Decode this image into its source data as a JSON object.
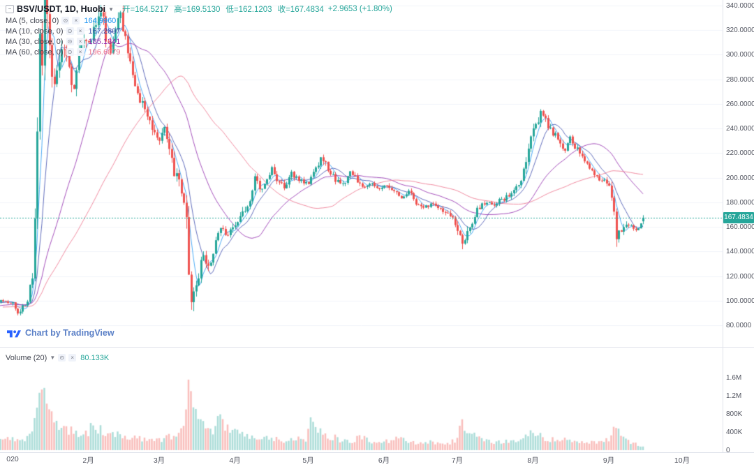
{
  "header": {
    "symbol_title": "BSV/USDT, 1D, Huobi",
    "ohlc": [
      "开=164.5217",
      "高=169.5130",
      "低=162.1203",
      "收=167.4834"
    ],
    "change": "+2.9653 (+1.80%)",
    "mas": [
      {
        "label": "MA (5, close, 0)",
        "value": "164.9960",
        "color": "#2196f3"
      },
      {
        "label": "MA (10, close, 0)",
        "value": "167.2807",
        "color": "#3949ab"
      },
      {
        "label": "MA (30, close, 0)",
        "value": "185.1341",
        "color": "#8e24aa"
      },
      {
        "label": "MA (60, close, 0)",
        "value": "196.6079",
        "color": "#ec6e88"
      }
    ]
  },
  "attribution": {
    "text": "Chart by TradingView"
  },
  "volume_legend": {
    "label": "Volume (20)",
    "value": "80.133K"
  },
  "price_tag": "167.4834",
  "colors": {
    "up": "#26a69a",
    "down": "#ef5350",
    "up_volume": "rgba(38,166,154,0.38)",
    "down_volume": "rgba(239,83,80,0.38)",
    "grid": "#f0f3fa",
    "accent_blue": "#2962ff",
    "tag_bg": "#26a69a",
    "axis_text": "#50535e"
  },
  "chart_data": {
    "type": "candlestick",
    "title": "BSV/USDT, 1D, Huobi",
    "timeframe": "1D",
    "exchange": "Huobi",
    "last_price": 167.4834,
    "last_candle": {
      "open": 164.5217,
      "high": 169.513,
      "low": 162.1203,
      "close": 167.4834,
      "volume_k": 80.133
    },
    "ylim": [
      80,
      340
    ],
    "volume_ylim_k": [
      0,
      1600
    ],
    "ma_periods": [
      5,
      10,
      30,
      60
    ],
    "price_ticks": [
      {
        "label": "340.0000",
        "value": 340
      },
      {
        "label": "320.0000",
        "value": 320
      },
      {
        "label": "300.0000",
        "value": 300
      },
      {
        "label": "280.0000",
        "value": 280
      },
      {
        "label": "260.0000",
        "value": 260
      },
      {
        "label": "240.0000",
        "value": 240
      },
      {
        "label": "220.0000",
        "value": 220
      },
      {
        "label": "200.0000",
        "value": 200
      },
      {
        "label": "180.0000",
        "value": 180
      },
      {
        "label": "160.0000",
        "value": 160
      },
      {
        "label": "140.0000",
        "value": 140
      },
      {
        "label": "120.0000",
        "value": 120
      },
      {
        "label": "100.0000",
        "value": 100
      },
      {
        "label": "80.0000",
        "value": 80
      }
    ],
    "volume_ticks": [
      {
        "label": "1.6M",
        "value": 1600
      },
      {
        "label": "1.2M",
        "value": 1200
      },
      {
        "label": "800K",
        "value": 800
      },
      {
        "label": "400K",
        "value": 400
      },
      {
        "label": "0",
        "value": 0
      }
    ],
    "time_ticks": [
      {
        "label": "020",
        "day": 0
      },
      {
        "label": "2月",
        "day": 31
      },
      {
        "label": "3月",
        "day": 60
      },
      {
        "label": "4月",
        "day": 91
      },
      {
        "label": "5月",
        "day": 121
      },
      {
        "label": "6月",
        "day": 152
      },
      {
        "label": "7月",
        "day": 182
      },
      {
        "label": "8月",
        "day": 213
      },
      {
        "label": "9月",
        "day": 244
      },
      {
        "label": "10月",
        "day": 274
      }
    ],
    "day_start": -63,
    "day_end": 258,
    "close_anchors": [
      [
        -63,
        95
      ],
      [
        -40,
        92
      ],
      [
        -20,
        96
      ],
      [
        -10,
        98
      ],
      [
        -3,
        100
      ],
      [
        0,
        97
      ],
      [
        2,
        90
      ],
      [
        4,
        95
      ],
      [
        6,
        100
      ],
      [
        8,
        120
      ],
      [
        9,
        160
      ],
      [
        10,
        230
      ],
      [
        11,
        310
      ],
      [
        12,
        290
      ],
      [
        13,
        360
      ],
      [
        14,
        330
      ],
      [
        15,
        300
      ],
      [
        17,
        270
      ],
      [
        19,
        290
      ],
      [
        21,
        310
      ],
      [
        23,
        290
      ],
      [
        25,
        270
      ],
      [
        27,
        300
      ],
      [
        29,
        315
      ],
      [
        31,
        305
      ],
      [
        34,
        330
      ],
      [
        36,
        340
      ],
      [
        38,
        315
      ],
      [
        40,
        300
      ],
      [
        42,
        320
      ],
      [
        44,
        335
      ],
      [
        46,
        310
      ],
      [
        48,
        290
      ],
      [
        51,
        270
      ],
      [
        54,
        255
      ],
      [
        57,
        240
      ],
      [
        60,
        228
      ],
      [
        62,
        238
      ],
      [
        64,
        222
      ],
      [
        66,
        205
      ],
      [
        68,
        195
      ],
      [
        70,
        185
      ],
      [
        71,
        170
      ],
      [
        72,
        115
      ],
      [
        73,
        92
      ],
      [
        74,
        108
      ],
      [
        76,
        122
      ],
      [
        78,
        138
      ],
      [
        80,
        128
      ],
      [
        82,
        142
      ],
      [
        85,
        158
      ],
      [
        88,
        152
      ],
      [
        91,
        162
      ],
      [
        94,
        172
      ],
      [
        97,
        180
      ],
      [
        99,
        200
      ],
      [
        101,
        190
      ],
      [
        103,
        196
      ],
      [
        106,
        208
      ],
      [
        108,
        198
      ],
      [
        111,
        193
      ],
      [
        114,
        204
      ],
      [
        117,
        198
      ],
      [
        120,
        194
      ],
      [
        123,
        202
      ],
      [
        125,
        212
      ],
      [
        127,
        216
      ],
      [
        129,
        206
      ],
      [
        132,
        198
      ],
      [
        135,
        194
      ],
      [
        138,
        204
      ],
      [
        141,
        198
      ],
      [
        144,
        192
      ],
      [
        147,
        196
      ],
      [
        150,
        190
      ],
      [
        153,
        194
      ],
      [
        156,
        188
      ],
      [
        159,
        184
      ],
      [
        162,
        190
      ],
      [
        165,
        179
      ],
      [
        168,
        174
      ],
      [
        171,
        180
      ],
      [
        174,
        177
      ],
      [
        177,
        171
      ],
      [
        180,
        166
      ],
      [
        182,
        158
      ],
      [
        184,
        148
      ],
      [
        186,
        154
      ],
      [
        188,
        162
      ],
      [
        190,
        174
      ],
      [
        193,
        180
      ],
      [
        196,
        177
      ],
      [
        199,
        181
      ],
      [
        202,
        184
      ],
      [
        205,
        189
      ],
      [
        208,
        196
      ],
      [
        210,
        215
      ],
      [
        212,
        235
      ],
      [
        214,
        242
      ],
      [
        216,
        252
      ],
      [
        218,
        246
      ],
      [
        220,
        240
      ],
      [
        222,
        234
      ],
      [
        224,
        228
      ],
      [
        226,
        224
      ],
      [
        228,
        234
      ],
      [
        230,
        226
      ],
      [
        232,
        219
      ],
      [
        234,
        214
      ],
      [
        236,
        209
      ],
      [
        238,
        204
      ],
      [
        240,
        199
      ],
      [
        242,
        197
      ],
      [
        244,
        192
      ],
      [
        245,
        186
      ],
      [
        246,
        172
      ],
      [
        247,
        152
      ],
      [
        249,
        158
      ],
      [
        251,
        164
      ],
      [
        253,
        160
      ],
      [
        255,
        157
      ],
      [
        257,
        162
      ],
      [
        258,
        167.48
      ]
    ],
    "volatility_anchors": [
      [
        -63,
        4
      ],
      [
        -10,
        5
      ],
      [
        0,
        6
      ],
      [
        6,
        6
      ],
      [
        8,
        15
      ],
      [
        10,
        35
      ],
      [
        13,
        45
      ],
      [
        16,
        30
      ],
      [
        20,
        22
      ],
      [
        25,
        20
      ],
      [
        30,
        20
      ],
      [
        36,
        22
      ],
      [
        40,
        18
      ],
      [
        45,
        18
      ],
      [
        50,
        15
      ],
      [
        55,
        14
      ],
      [
        60,
        13
      ],
      [
        65,
        14
      ],
      [
        70,
        20
      ],
      [
        72,
        35
      ],
      [
        74,
        25
      ],
      [
        78,
        15
      ],
      [
        82,
        13
      ],
      [
        86,
        11
      ],
      [
        92,
        9
      ],
      [
        98,
        13
      ],
      [
        104,
        9
      ],
      [
        110,
        8
      ],
      [
        116,
        8
      ],
      [
        122,
        9
      ],
      [
        127,
        10
      ],
      [
        133,
        7
      ],
      [
        140,
        7
      ],
      [
        147,
        6
      ],
      [
        154,
        6
      ],
      [
        160,
        6
      ],
      [
        166,
        7
      ],
      [
        172,
        6
      ],
      [
        178,
        7
      ],
      [
        182,
        10
      ],
      [
        184,
        13
      ],
      [
        188,
        9
      ],
      [
        193,
        7
      ],
      [
        200,
        6
      ],
      [
        205,
        7
      ],
      [
        209,
        11
      ],
      [
        212,
        14
      ],
      [
        216,
        12
      ],
      [
        220,
        10
      ],
      [
        226,
        9
      ],
      [
        232,
        8
      ],
      [
        238,
        7
      ],
      [
        243,
        7
      ],
      [
        245,
        10
      ],
      [
        247,
        18
      ],
      [
        250,
        9
      ],
      [
        254,
        6
      ],
      [
        258,
        5
      ]
    ],
    "volume_anchors_k": [
      [
        -63,
        150
      ],
      [
        -20,
        200
      ],
      [
        -3,
        250
      ],
      [
        0,
        300
      ],
      [
        3,
        200
      ],
      [
        6,
        300
      ],
      [
        8,
        500
      ],
      [
        10,
        900
      ],
      [
        12,
        1300
      ],
      [
        13,
        1550
      ],
      [
        14,
        1100
      ],
      [
        16,
        800
      ],
      [
        18,
        600
      ],
      [
        20,
        500
      ],
      [
        23,
        450
      ],
      [
        26,
        400
      ],
      [
        29,
        350
      ],
      [
        33,
        500
      ],
      [
        36,
        450
      ],
      [
        40,
        300
      ],
      [
        44,
        350
      ],
      [
        48,
        280
      ],
      [
        52,
        250
      ],
      [
        56,
        300
      ],
      [
        60,
        250
      ],
      [
        64,
        280
      ],
      [
        68,
        350
      ],
      [
        70,
        500
      ],
      [
        72,
        1400
      ],
      [
        73,
        1050
      ],
      [
        75,
        700
      ],
      [
        78,
        500
      ],
      [
        81,
        380
      ],
      [
        85,
        750
      ],
      [
        88,
        450
      ],
      [
        92,
        350
      ],
      [
        96,
        280
      ],
      [
        100,
        240
      ],
      [
        104,
        280
      ],
      [
        108,
        230
      ],
      [
        112,
        190
      ],
      [
        116,
        240
      ],
      [
        120,
        260
      ],
      [
        122,
        780
      ],
      [
        125,
        500
      ],
      [
        128,
        380
      ],
      [
        131,
        280
      ],
      [
        135,
        230
      ],
      [
        139,
        180
      ],
      [
        143,
        320
      ],
      [
        147,
        180
      ],
      [
        151,
        160
      ],
      [
        155,
        220
      ],
      [
        158,
        280
      ],
      [
        162,
        180
      ],
      [
        166,
        130
      ],
      [
        170,
        180
      ],
      [
        174,
        140
      ],
      [
        178,
        130
      ],
      [
        182,
        260
      ],
      [
        184,
        620
      ],
      [
        186,
        400
      ],
      [
        190,
        330
      ],
      [
        194,
        200
      ],
      [
        198,
        170
      ],
      [
        202,
        180
      ],
      [
        206,
        190
      ],
      [
        210,
        380
      ],
      [
        213,
        340
      ],
      [
        216,
        300
      ],
      [
        220,
        240
      ],
      [
        224,
        190
      ],
      [
        228,
        240
      ],
      [
        232,
        190
      ],
      [
        236,
        170
      ],
      [
        240,
        190
      ],
      [
        244,
        240
      ],
      [
        246,
        420
      ],
      [
        248,
        380
      ],
      [
        250,
        280
      ],
      [
        252,
        200
      ],
      [
        254,
        160
      ],
      [
        256,
        130
      ],
      [
        258,
        80
      ]
    ]
  }
}
